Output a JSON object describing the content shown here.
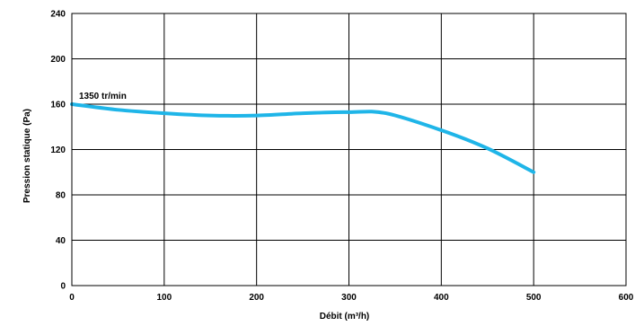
{
  "chart_data": {
    "type": "line",
    "xlabel": "Débit (m³/h)",
    "ylabel": "Pression statique (Pa)",
    "xlim": [
      0,
      600
    ],
    "ylim": [
      0,
      240
    ],
    "x_ticks": [
      "0",
      "100",
      "200",
      "300",
      "400",
      "500",
      "600"
    ],
    "y_ticks": [
      "0",
      "40",
      "80",
      "120",
      "160",
      "200",
      "240"
    ],
    "grid": true,
    "series": [
      {
        "name": "1350  tr/min",
        "color": "#1fb5e8",
        "x": [
          0,
          50,
          100,
          150,
          200,
          250,
          300,
          340,
          400,
          450,
          500
        ],
        "y": [
          160,
          155,
          152,
          150,
          150,
          152,
          153,
          152,
          137,
          121,
          100
        ]
      }
    ],
    "annotations": [
      {
        "text": "1350  tr/min",
        "x": 0,
        "y": 160
      }
    ]
  }
}
